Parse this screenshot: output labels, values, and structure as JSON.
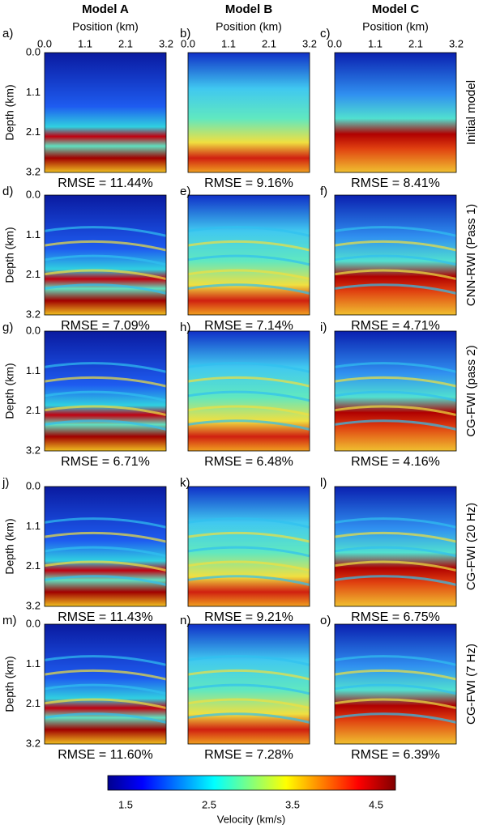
{
  "columns": [
    "Model A",
    "Model B",
    "Model C"
  ],
  "rows": [
    "Initial model",
    "CNN-RWI (Pass 1)",
    "CG-FWI (pass 2)",
    "CG-FWI (20 Hz)",
    "CG-FWI (7 Hz)"
  ],
  "panels": [
    {
      "letter": "a)",
      "rmse": "RMSE = 11.44%"
    },
    {
      "letter": "b)",
      "rmse": "RMSE = 9.16%"
    },
    {
      "letter": "c)",
      "rmse": "RMSE = 8.41%"
    },
    {
      "letter": "d)",
      "rmse": "RMSE = 7.09%"
    },
    {
      "letter": "e)",
      "rmse": "RMSE = 7.14%"
    },
    {
      "letter": "f)",
      "rmse": "RMSE = 4.71%"
    },
    {
      "letter": "g)",
      "rmse": "RMSE = 6.71%"
    },
    {
      "letter": "h)",
      "rmse": "RMSE = 6.48%"
    },
    {
      "letter": "i)",
      "rmse": "RMSE = 4.16%"
    },
    {
      "letter": "j)",
      "rmse": "RMSE = 11.43%"
    },
    {
      "letter": "k)",
      "rmse": "RMSE = 9.21%"
    },
    {
      "letter": "l)",
      "rmse": "RMSE = 6.75%"
    },
    {
      "letter": "m)",
      "rmse": "RMSE = 11.60%"
    },
    {
      "letter": "n)",
      "rmse": "RMSE = 7.28%"
    },
    {
      "letter": "o)",
      "rmse": "RMSE = 6.39%"
    }
  ],
  "x_axis": {
    "label": "Position (km)",
    "ticks": [
      "0.0",
      "1.1",
      "2.1",
      "3.2"
    ]
  },
  "y_axis": {
    "label": "Depth (km)",
    "ticks": [
      "0.0",
      "1.1",
      "2.1",
      "3.2"
    ]
  },
  "colorbar": {
    "label": "Velocity (km/s)",
    "ticks": [
      "1.5",
      "2.5",
      "3.5",
      "4.5"
    ]
  }
}
